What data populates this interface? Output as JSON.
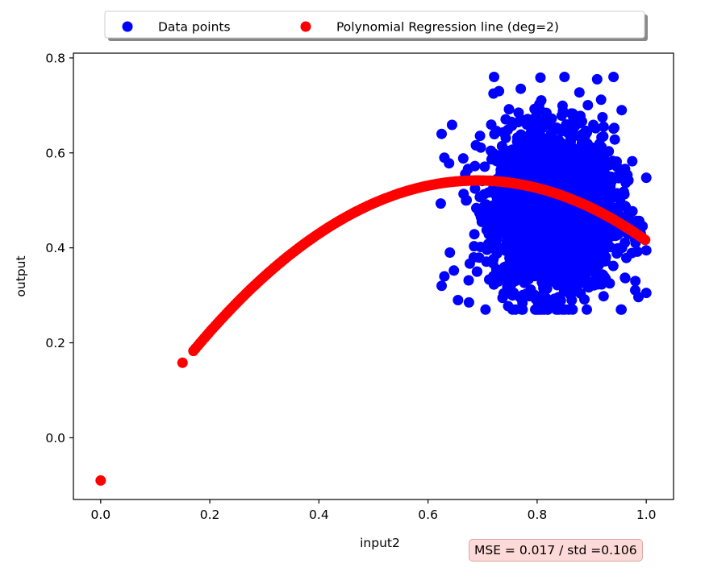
{
  "chart_data": {
    "type": "scatter",
    "title": "",
    "xlabel": "input2",
    "ylabel": "output",
    "xlim": [
      -0.05,
      1.05
    ],
    "ylim": [
      -0.13,
      0.81
    ],
    "xticks": [
      "0.0",
      "0.2",
      "0.4",
      "0.6",
      "0.8",
      "1.0"
    ],
    "yticks": [
      "0.0",
      "0.2",
      "0.4",
      "0.6",
      "0.8"
    ],
    "legend_position": "top-center (above plot)",
    "series": [
      {
        "name": "Data points",
        "color": "#0000ff",
        "kind": "scatter-cloud",
        "x_range": [
          0.62,
          1.0
        ],
        "y_range": [
          0.27,
          0.76
        ],
        "center_x": 0.83,
        "center_y": 0.48
      },
      {
        "name": "Polynomial Regression line (deg=2)",
        "color": "#ff0000",
        "kind": "quadratic-curve",
        "x_range": [
          0.15,
          1.0
        ],
        "points": [
          [
            0.0,
            -0.09
          ],
          [
            0.15,
            0.158
          ],
          [
            0.17,
            0.185
          ],
          [
            0.3,
            0.35
          ],
          [
            0.5,
            0.505
          ],
          [
            0.69,
            0.548
          ],
          [
            0.85,
            0.51
          ],
          [
            1.0,
            0.415
          ]
        ]
      }
    ]
  },
  "annotation": {
    "text": "MSE = 0.017 / std =0.106",
    "background": "#fdd9d7"
  }
}
